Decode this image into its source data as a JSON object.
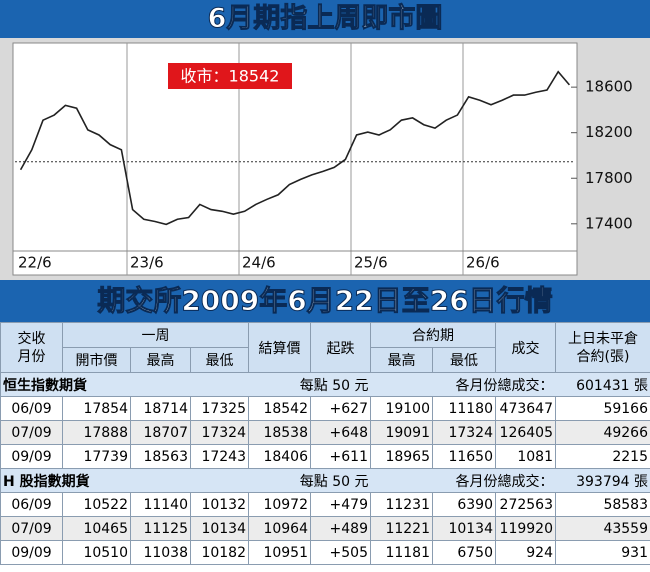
{
  "banner_top": "6月期指上周即市圖",
  "chart_data": {
    "type": "line",
    "annotation": "收市：18542",
    "categories": [
      "22/6",
      null,
      null,
      null,
      null,
      null,
      null,
      null,
      null,
      null,
      "23/6",
      null,
      null,
      null,
      null,
      null,
      null,
      null,
      null,
      null,
      "24/6",
      null,
      null,
      null,
      null,
      null,
      null,
      null,
      null,
      null,
      "25/6",
      null,
      null,
      null,
      null,
      null,
      null,
      null,
      null,
      null,
      "26/6",
      null,
      null,
      null,
      null,
      null,
      null,
      null,
      null,
      null
    ],
    "series": [
      {
        "color": "#222222",
        "values": [
          17875,
          18050,
          18310,
          18355,
          18440,
          18415,
          18225,
          18180,
          18095,
          18050,
          17525,
          17440,
          17420,
          17395,
          17440,
          17455,
          17570,
          17525,
          17510,
          17485,
          17510,
          17570,
          17615,
          17655,
          17745,
          17790,
          17830,
          17860,
          17895,
          17965,
          18180,
          18205,
          18180,
          18225,
          18310,
          18330,
          18270,
          18240,
          18310,
          18355,
          18515,
          18485,
          18445,
          18485,
          18530,
          18530,
          18555,
          18575,
          18735,
          18620
        ]
      }
    ],
    "baseline": 17945,
    "ylim": [
      17170,
      18970
    ],
    "yticks": [
      17400,
      17800,
      18200,
      18600
    ],
    "grid": true
  },
  "banner_bottom": "期交所2009年6月22日至26日行情",
  "table": {
    "header": {
      "month": "交收月份",
      "week": "一周",
      "open": "開市價",
      "high": "最高",
      "low": "最低",
      "settle": "結算價",
      "change": "起跌",
      "contract": "合約期",
      "c_high": "最高",
      "c_low": "最低",
      "volume": "成交",
      "oi": "上日未平倉合約(張)"
    },
    "sections": [
      {
        "name": "恒生指數期貨",
        "point": "每點 50 元",
        "total_label": "各月份總成交：",
        "total": "601431 張",
        "rows": [
          [
            "06/09",
            "17854",
            "18714",
            "17325",
            "18542",
            "+627",
            "19100",
            "11180",
            "473647",
            "59166"
          ],
          [
            "07/09",
            "17888",
            "18707",
            "17324",
            "18538",
            "+648",
            "19091",
            "17324",
            "126405",
            "49266"
          ],
          [
            "09/09",
            "17739",
            "18563",
            "17243",
            "18406",
            "+611",
            "18965",
            "11650",
            "1081",
            "2215"
          ]
        ]
      },
      {
        "name": "H 股指數期貨",
        "point": "每點 50 元",
        "total_label": "各月份總成交：",
        "total": "393794 張",
        "rows": [
          [
            "06/09",
            "10522",
            "11140",
            "10132",
            "10972",
            "+479",
            "11231",
            "6390",
            "272563",
            "58583"
          ],
          [
            "07/09",
            "10465",
            "11125",
            "10134",
            "10964",
            "+489",
            "11221",
            "10134",
            "119920",
            "43559"
          ],
          [
            "09/09",
            "10510",
            "11038",
            "10182",
            "10951",
            "+505",
            "11181",
            "6750",
            "924",
            "931"
          ]
        ]
      }
    ]
  }
}
